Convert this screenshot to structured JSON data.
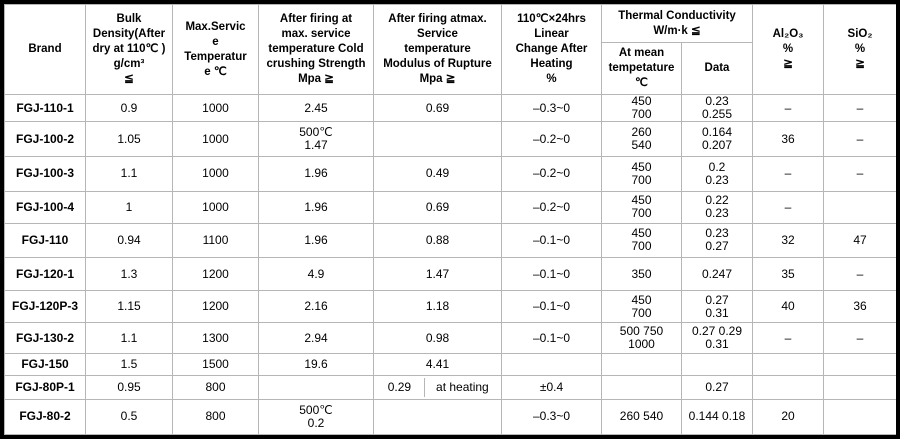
{
  "table": {
    "header": {
      "brand": "Brand",
      "bulk_density": "Bulk\nDensity(After\ndry at 110℃ )\ng/cm³\n≦",
      "max_service": "Max.Servic\ne\nTemperatur\ne ℃",
      "cold_crushing": "After firing at\nmax. service\ntemperature Cold\ncrushing Strength\nMpa ≧",
      "modulus": "After firing atmax.\nService\ntemperature\nModulus of Rupture\nMpa ≧",
      "linear_change": "110℃×24hrs\nLinear\nChange After\nHeating\n%",
      "thermal": "Thermal Conductivity\nW/m·k ≦",
      "at_mean": "At mean\ntempetature\n℃",
      "data_col": "Data",
      "al2o3": "Al₂O₃\n%\n≧",
      "sio2": "SiO₂\n%\n≧"
    },
    "rows": [
      {
        "cells": [
          "FGJ-110-1",
          "0.9",
          "1000",
          "2.45",
          "0.69",
          "–0.3~0",
          "450\n700",
          "0.23\n0.255",
          "–",
          "–"
        ]
      },
      {
        "cells": [
          "FGJ-100-2",
          "1.05",
          "1000",
          "500℃\n1.47",
          "",
          "–0.2~0",
          "260\n540",
          "0.164\n0.207",
          "36",
          "–"
        ]
      },
      {
        "cells": [
          "FGJ-100-3",
          "1.1",
          "1000",
          "1.96",
          "0.49",
          "–0.2~0",
          "450\n700",
          "0.2\n0.23",
          "–",
          "–"
        ]
      },
      {
        "cells": [
          "FGJ-100-4",
          "1",
          "1000",
          "1.96",
          "0.69",
          "–0.2~0",
          "450\n700",
          "0.22\n0.23",
          "–",
          ""
        ]
      },
      {
        "cells": [
          "FGJ-110",
          "0.94",
          "1100",
          "1.96",
          "0.88",
          "–0.1~0",
          "450\n700",
          "0.23\n0.27",
          "32",
          "47"
        ]
      },
      {
        "cells": [
          "FGJ-120-1",
          "1.3",
          "1200",
          "4.9",
          "1.47",
          "–0.1~0",
          "350",
          "0.247",
          "35",
          "–"
        ]
      },
      {
        "cells": [
          "FGJ-120P-3",
          "1.15",
          "1200",
          "2.16",
          "1.18",
          "–0.1~0",
          "450\n700",
          "0.27\n0.31",
          "40",
          "36"
        ]
      },
      {
        "cells": [
          "FGJ-130-2",
          "1.1",
          "1300",
          "2.94",
          "0.98",
          "–0.1~0",
          "500  750\n1000",
          "0.27  0.29\n0.31",
          "–",
          "–"
        ]
      },
      {
        "cells": [
          "FGJ-150",
          "1.5",
          "1500",
          "19.6",
          "4.41",
          "",
          "",
          "",
          "",
          ""
        ]
      },
      {
        "cells": [
          "FGJ-80P-1",
          "0.95",
          "800",
          "",
          {
            "split": [
              "0.29",
              "at heating"
            ]
          },
          "±0.4",
          "",
          "0.27",
          "",
          ""
        ]
      },
      {
        "cells": [
          "FGJ-80-2",
          "0.5",
          "800",
          "500℃\n0.2",
          "",
          "–0.3~0",
          "260 540",
          "0.144 0.18",
          "20",
          ""
        ]
      }
    ]
  },
  "colors": {
    "outer_border": "#000000",
    "grid_line": "#b6b6b6",
    "background": "#ffffff",
    "text": "#000000"
  }
}
